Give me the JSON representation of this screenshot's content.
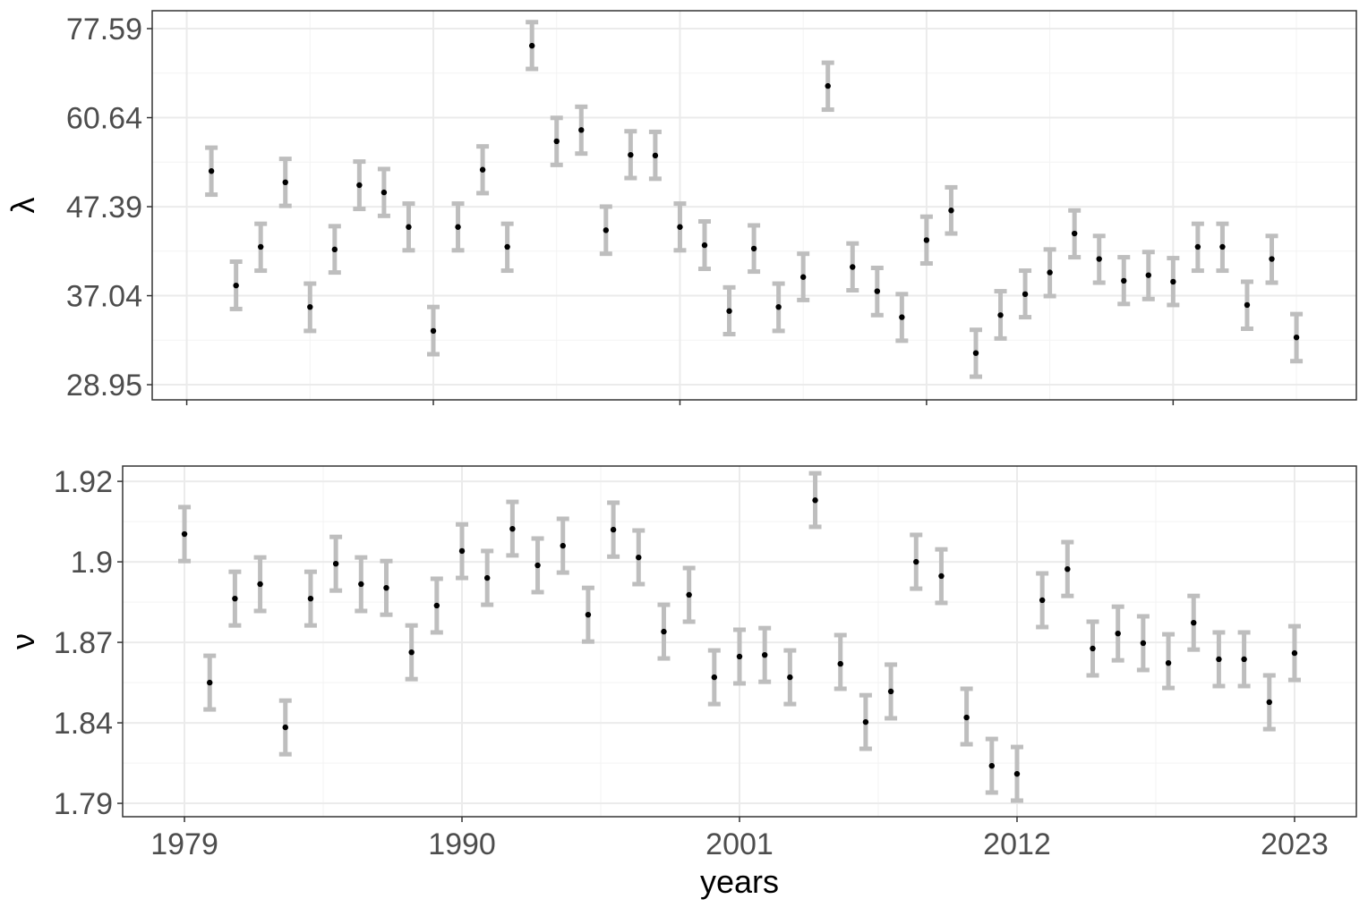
{
  "chart_data": [
    {
      "type": "errorbar",
      "y_label": "λ",
      "y_scale": "log",
      "grid": true,
      "x": [
        1979,
        1980,
        1981,
        1982,
        1983,
        1984,
        1985,
        1986,
        1987,
        1988,
        1989,
        1990,
        1991,
        1992,
        1993,
        1994,
        1995,
        1996,
        1997,
        1998,
        1999,
        2000,
        2001,
        2002,
        2003,
        2004,
        2005,
        2006,
        2007,
        2008,
        2009,
        2010,
        2011,
        2012,
        2013,
        2014,
        2015,
        2016,
        2017,
        2018,
        2019,
        2020,
        2021,
        2022,
        2023
      ],
      "values": [
        52.3,
        38.1,
        42.4,
        50.7,
        35.9,
        42.1,
        50.3,
        49.3,
        44.8,
        33.6,
        44.8,
        52.5,
        42.4,
        74.0,
        56.8,
        58.6,
        44.4,
        54.7,
        54.6,
        44.8,
        42.6,
        35.5,
        42.2,
        35.9,
        39.0,
        66.2,
        40.1,
        37.5,
        34.9,
        43.2,
        46.9,
        31.6,
        35.1,
        37.2,
        39.5,
        44.0,
        41.0,
        38.6,
        39.2,
        38.5,
        42.4,
        42.4,
        36.1,
        41.0,
        33.0
      ],
      "lower": [
        49.0,
        35.7,
        39.7,
        47.5,
        33.6,
        39.5,
        47.1,
        46.2,
        42.0,
        31.5,
        42.0,
        49.2,
        39.7,
        69.4,
        53.2,
        54.9,
        41.6,
        51.3,
        51.2,
        42.0,
        39.9,
        33.3,
        39.6,
        33.6,
        36.6,
        62.0,
        37.6,
        35.1,
        32.7,
        40.5,
        44.0,
        29.6,
        32.9,
        34.9,
        37.0,
        41.2,
        38.4,
        36.2,
        36.7,
        36.1,
        39.7,
        39.7,
        33.8,
        38.4,
        30.9
      ],
      "upper": [
        55.8,
        40.7,
        45.2,
        54.1,
        38.3,
        44.9,
        53.7,
        52.6,
        47.8,
        35.9,
        47.8,
        56.0,
        45.2,
        79.0,
        60.6,
        62.5,
        47.4,
        58.4,
        58.3,
        47.8,
        45.5,
        37.9,
        45.0,
        38.3,
        41.6,
        70.6,
        42.8,
        40.0,
        37.2,
        46.1,
        50.0,
        33.7,
        37.5,
        39.7,
        42.1,
        46.9,
        43.7,
        41.2,
        41.8,
        41.1,
        45.2,
        45.2,
        38.5,
        43.7,
        35.2
      ],
      "color": "#000000",
      "error_color": "#bebebe",
      "xlim": [
        1976.6,
        2025.43
      ],
      "xticks": [
        1978,
        1988,
        1998,
        2008,
        2018
      ],
      "ylim": [
        27.76,
        81.53
      ],
      "yticks": [
        28.95,
        37.04,
        47.39,
        60.64,
        77.59
      ]
    },
    {
      "type": "errorbar",
      "y_label": "ν",
      "x_label": "years",
      "y_scale": "tick-spaced",
      "grid": true,
      "x": [
        1979,
        1980,
        1981,
        1982,
        1983,
        1984,
        1985,
        1986,
        1987,
        1988,
        1989,
        1990,
        1991,
        1992,
        1993,
        1994,
        1995,
        1996,
        1997,
        1998,
        1999,
        2000,
        2001,
        2002,
        2003,
        2004,
        2005,
        2006,
        2007,
        2008,
        2009,
        2010,
        2011,
        2012,
        2013,
        2014,
        2015,
        2016,
        2017,
        2018,
        2019,
        2020,
        2021,
        2022,
        2023
      ],
      "values": [
        1.9069,
        1.855,
        1.8863,
        1.8917,
        1.8372,
        1.8863,
        1.8993,
        1.8917,
        1.8903,
        1.8663,
        1.8837,
        1.9027,
        1.894,
        1.9082,
        1.8987,
        1.904,
        1.8803,
        1.908,
        1.9011,
        1.874,
        1.8877,
        1.857,
        1.8647,
        1.8653,
        1.857,
        1.9153,
        1.862,
        1.8403,
        1.8517,
        1.9,
        1.8947,
        1.842,
        1.8133,
        1.8083,
        1.8857,
        1.8973,
        1.8677,
        1.8733,
        1.8697,
        1.8623,
        1.8773,
        1.8637,
        1.8637,
        1.8477,
        1.866
      ],
      "lower": [
        1.9002,
        1.845,
        1.8763,
        1.8817,
        1.8205,
        1.8763,
        1.8893,
        1.8817,
        1.8803,
        1.8563,
        1.8737,
        1.894,
        1.884,
        1.9016,
        1.8887,
        1.896,
        1.8703,
        1.9013,
        1.8917,
        1.864,
        1.8777,
        1.847,
        1.8547,
        1.8553,
        1.847,
        1.9087,
        1.8527,
        1.8239,
        1.8417,
        1.89,
        1.8847,
        1.8267,
        1.7967,
        1.7917,
        1.8757,
        1.8873,
        1.8577,
        1.8633,
        1.8597,
        1.853,
        1.8673,
        1.8537,
        1.8537,
        1.8361,
        1.856
      ],
      "upper": [
        1.9136,
        1.865,
        1.8963,
        1.9011,
        1.8483,
        1.8963,
        1.9062,
        1.9011,
        1.9002,
        1.8763,
        1.8937,
        1.9093,
        1.9027,
        1.9149,
        1.9058,
        1.9107,
        1.8903,
        1.9147,
        1.9078,
        1.884,
        1.8977,
        1.867,
        1.8747,
        1.8753,
        1.867,
        1.922,
        1.8727,
        1.8503,
        1.8617,
        1.9067,
        1.9031,
        1.8527,
        1.83,
        1.825,
        1.8957,
        1.9049,
        1.8777,
        1.8833,
        1.8797,
        1.873,
        1.8873,
        1.8737,
        1.8737,
        1.8577,
        1.876
      ],
      "color": "#000000",
      "error_color": "#bebebe",
      "xlim": [
        1976.55,
        2025.45
      ],
      "xticks": [
        1979,
        1990,
        2001,
        2012,
        2023
      ],
      "ylim": [
        1.7817,
        1.9238
      ],
      "yticks": [
        1.79,
        1.84,
        1.87,
        1.9,
        1.92
      ]
    }
  ]
}
